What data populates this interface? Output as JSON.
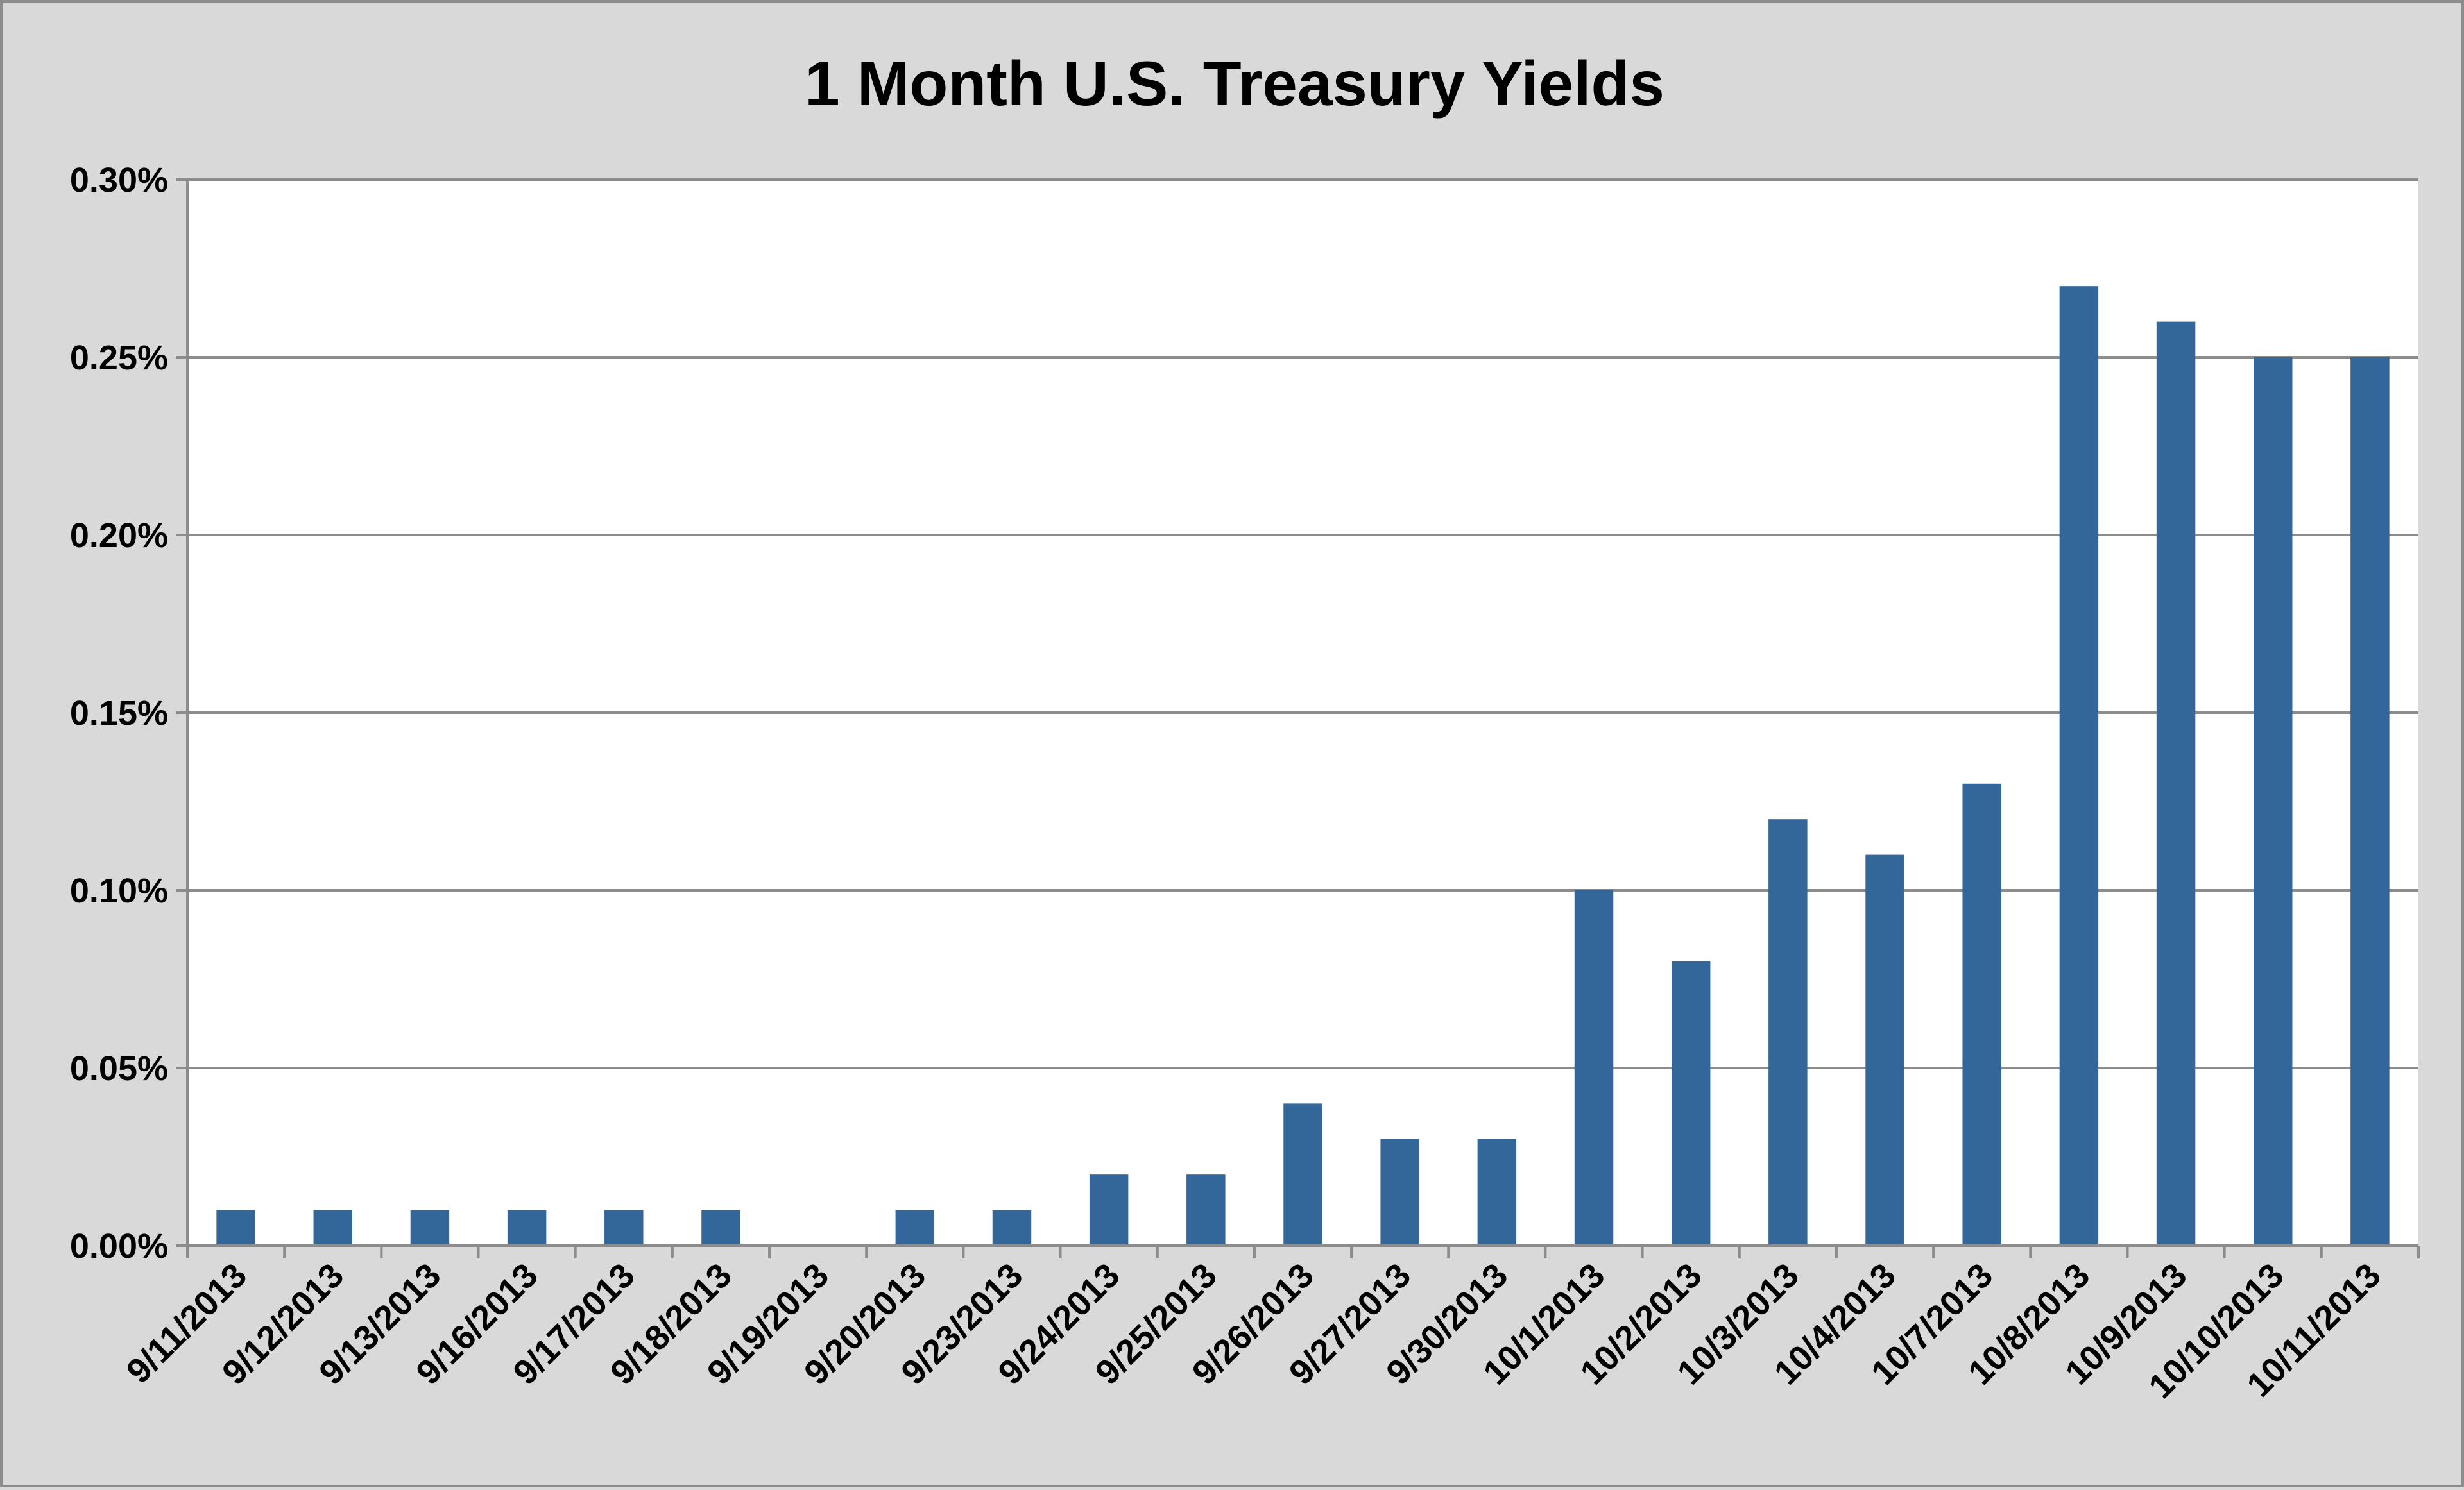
{
  "chart_data": {
    "type": "bar",
    "title": "1 Month U.S. Treasury Yields",
    "xlabel": "",
    "ylabel": "",
    "categories": [
      "9/11/2013",
      "9/12/2013",
      "9/13/2013",
      "9/16/2013",
      "9/17/2013",
      "9/18/2013",
      "9/19/2013",
      "9/20/2013",
      "9/23/2013",
      "9/24/2013",
      "9/25/2013",
      "9/26/2013",
      "9/27/2013",
      "9/30/2013",
      "10/1/2013",
      "10/2/2013",
      "10/3/2013",
      "10/4/2013",
      "10/7/2013",
      "10/8/2013",
      "10/9/2013",
      "10/10/2013",
      "10/11/2013"
    ],
    "values": [
      0.01,
      0.01,
      0.01,
      0.01,
      0.01,
      0.01,
      0.0,
      0.01,
      0.01,
      0.02,
      0.02,
      0.04,
      0.03,
      0.03,
      0.1,
      0.08,
      0.12,
      0.11,
      0.13,
      0.27,
      0.26,
      0.25,
      0.25
    ],
    "ylim": [
      0,
      0.3
    ],
    "yticks": [
      "0.00%",
      "0.05%",
      "0.10%",
      "0.15%",
      "0.20%",
      "0.25%",
      "0.30%"
    ],
    "ytick_values": [
      0,
      0.05,
      0.1,
      0.15,
      0.2,
      0.25,
      0.3
    ],
    "grid": true,
    "legend": "none",
    "colors": {
      "bar": "#336699",
      "plot_background": "#ffffff",
      "chart_background": "#d9d9d9",
      "gridline": "#8c8c8c",
      "axis": "#8c8c8c"
    }
  }
}
